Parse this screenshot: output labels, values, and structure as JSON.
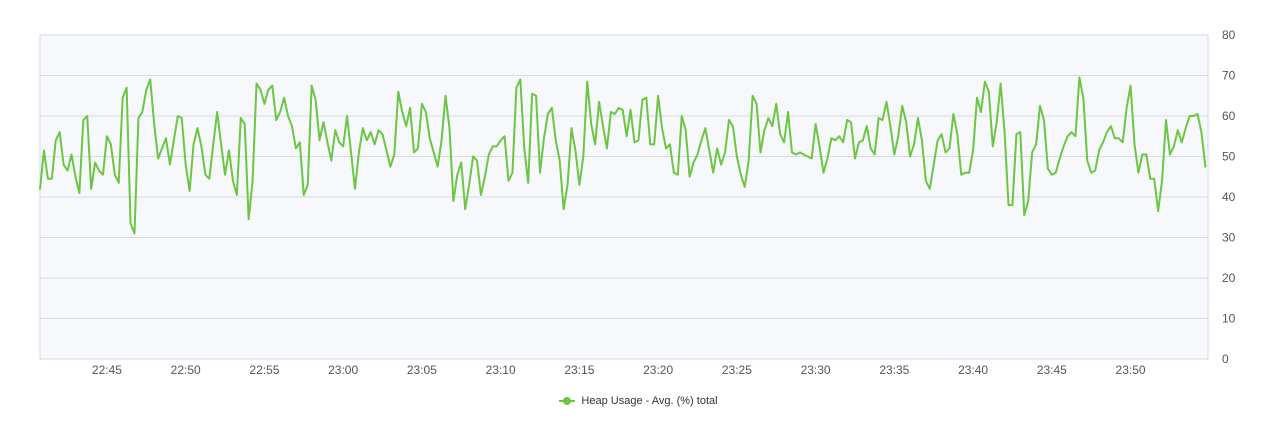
{
  "chart_data": {
    "type": "line",
    "title": "",
    "xlabel": "",
    "ylabel": "",
    "ylim": [
      0,
      80
    ],
    "y_ticks": [
      0,
      10,
      20,
      30,
      40,
      50,
      60,
      70,
      80
    ],
    "y_axis_side": "right",
    "grid": true,
    "legend_position": "bottom-center",
    "x_range": [
      "22:40:45",
      "23:54:55"
    ],
    "x_ticks": [
      "22:45",
      "22:50",
      "22:55",
      "23:00",
      "23:05",
      "23:10",
      "23:15",
      "23:20",
      "23:25",
      "23:30",
      "23:35",
      "23:40",
      "23:45",
      "23:50"
    ],
    "colors": {
      "series": "#6cc644",
      "plot_bg": "#f6f8fb",
      "grid": "#d3dbe5"
    },
    "series": [
      {
        "name": "Heap Usage - Avg. (%) total",
        "x_start": "22:40:45",
        "x_interval_seconds": 15,
        "values": [
          42,
          51.5,
          44.5,
          44.5,
          54,
          56,
          48,
          46.5,
          50.5,
          45,
          41,
          59,
          60,
          42,
          48.5,
          46.5,
          45.5,
          55,
          53,
          45.5,
          43.5,
          64.5,
          67,
          33.5,
          31,
          59.5,
          61,
          66.5,
          69,
          58,
          49.5,
          52,
          54.5,
          48,
          54,
          60,
          59.5,
          48,
          41.5,
          53,
          57,
          52.5,
          45.5,
          44.5,
          53,
          61,
          53,
          45.5,
          51.5,
          44,
          40.5,
          59.5,
          58,
          34.5,
          44,
          68,
          66.5,
          63,
          66.5,
          67.5,
          59,
          61,
          64.5,
          60,
          57.5,
          52,
          53.5,
          40.5,
          43,
          67.5,
          64,
          54,
          58.5,
          53.5,
          49,
          56.5,
          53.5,
          52.5,
          60,
          51,
          42,
          51,
          57,
          54,
          56,
          53,
          56.5,
          55.5,
          51.5,
          47.5,
          50.5,
          66,
          61,
          57.5,
          62,
          51,
          52,
          63,
          61,
          54.5,
          51,
          47.5,
          54,
          65,
          57,
          39,
          45.5,
          48.5,
          37,
          43,
          50,
          49,
          40.5,
          45,
          50.5,
          52.5,
          52.5,
          54,
          55,
          44,
          46,
          67,
          69,
          52,
          43.5,
          65.5,
          65,
          46,
          54.5,
          60.5,
          62,
          54,
          49,
          37,
          43,
          57,
          51.5,
          43,
          50,
          68.5,
          58,
          53,
          63.5,
          57.5,
          52,
          61,
          60.5,
          62,
          61.5,
          55,
          61.5,
          53.5,
          54,
          64,
          64.5,
          53,
          53,
          65,
          57,
          52,
          53,
          46,
          45.5,
          60,
          56.5,
          45,
          48.5,
          50.5,
          54,
          57,
          51.5,
          46,
          52,
          48,
          51,
          59,
          57.5,
          50,
          45.5,
          42.5,
          49,
          65,
          63,
          51,
          56.5,
          59.5,
          57.5,
          63,
          55.5,
          53.5,
          61,
          51,
          50.5,
          51,
          50.5,
          50,
          49.5,
          58,
          52.5,
          46,
          49.5,
          54.5,
          54,
          55,
          53.5,
          59,
          58.5,
          49.5,
          53.5,
          54,
          57.5,
          52,
          50.5,
          59.5,
          59,
          63.5,
          57.5,
          50.5,
          55,
          62.5,
          58.5,
          50,
          53,
          59.5,
          54,
          44,
          42,
          48,
          54,
          55.5,
          51,
          52,
          60.5,
          55.5,
          45.5,
          46,
          46,
          51.5,
          64.5,
          61,
          68.5,
          66,
          52.5,
          58.5,
          68,
          56,
          38,
          38,
          55.5,
          56,
          35.5,
          39,
          51,
          53,
          62.5,
          59,
          47,
          45.5,
          46,
          49.5,
          52.5,
          55,
          56,
          55,
          69.5,
          64.5,
          49,
          46,
          46.5,
          51.5,
          53.5,
          56,
          57.5,
          54.5,
          54.5,
          53.5,
          62,
          67.5,
          53,
          46,
          50.5,
          50.5,
          44.5,
          44.5,
          36.5,
          44,
          59,
          50.5,
          52.5,
          56.5,
          53.5,
          57,
          60,
          60,
          60.5,
          56,
          47.5
        ]
      }
    ]
  }
}
